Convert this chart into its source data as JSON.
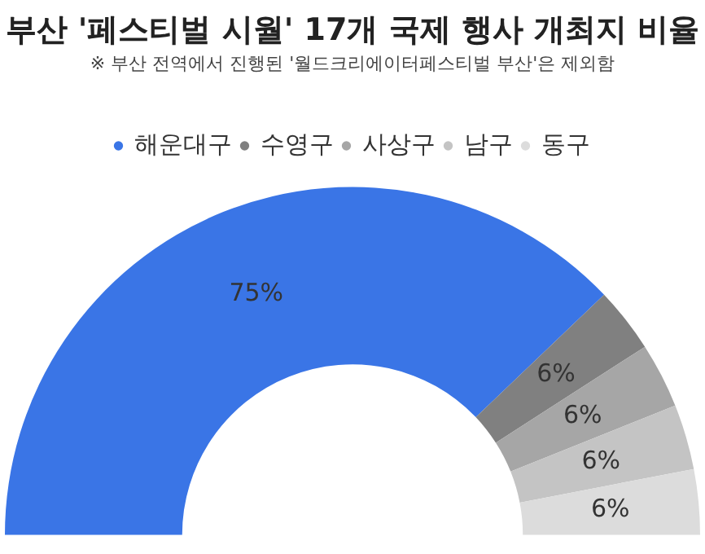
{
  "chart_data": {
    "type": "donut",
    "title": "부산 '페스티벌 시월' 17개 국제 행사 개최지 비율",
    "subtitle": "※ 부산 전역에서 진행된 '월드크리에이터페스티벌 부산'은 제외함",
    "categories": [
      "해운대구",
      "수영구",
      "사상구",
      "남구",
      "동구"
    ],
    "values": [
      75,
      6,
      6,
      6,
      6
    ],
    "colors": [
      "#3a75e6",
      "#808080",
      "#a6a6a6",
      "#c4c4c4",
      "#dcdcdc"
    ],
    "value_labels": [
      "75%",
      "6%",
      "6%",
      "6%",
      "6%"
    ],
    "legend": "top"
  }
}
